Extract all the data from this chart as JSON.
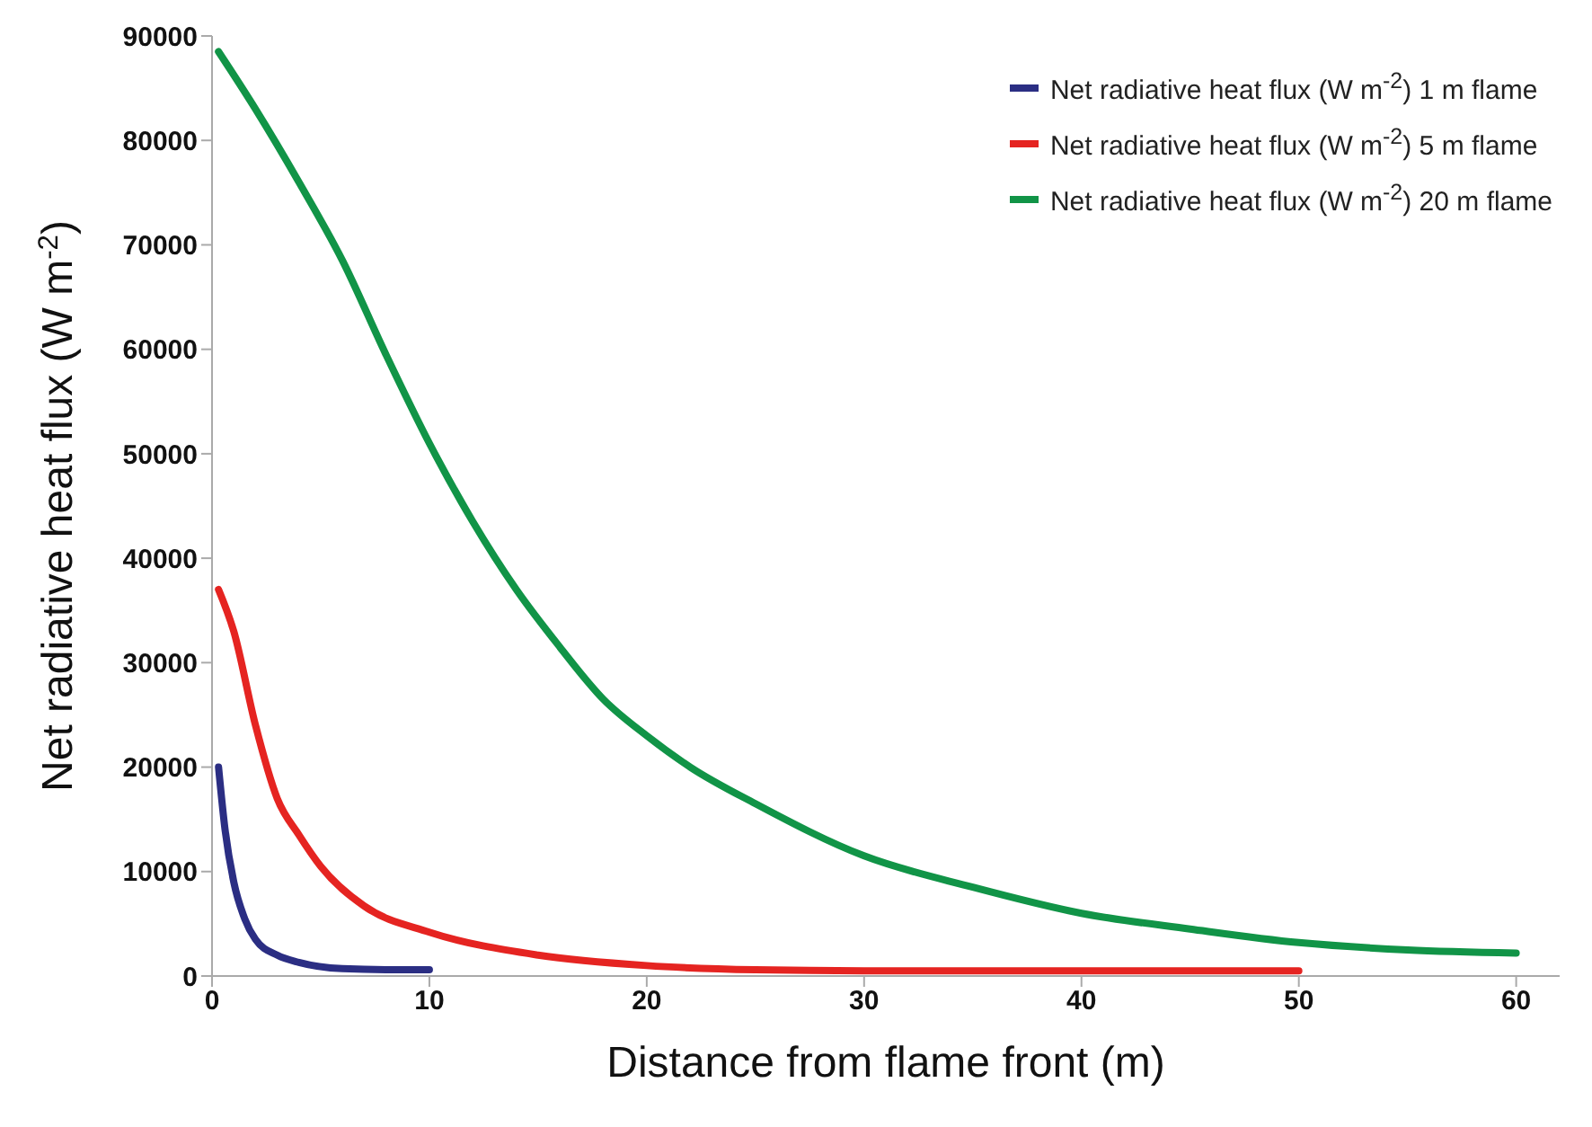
{
  "chart_data": {
    "type": "line",
    "xlabel": "Distance from flame front (m)",
    "ylabel": "Net radiative heat flux (W m$^{-2}$)",
    "xlim": [
      0,
      62
    ],
    "xticks": [
      0,
      10,
      20,
      30,
      40,
      50,
      60
    ],
    "ylim": [
      0,
      90000
    ],
    "yticks": [
      0,
      10000,
      20000,
      30000,
      40000,
      50000,
      60000,
      70000,
      80000,
      90000
    ],
    "grid": false,
    "legend": "top right",
    "marker": "none",
    "line_style": "solid",
    "series": [
      {
        "name": "Net radiative heat flux (W m$^{-2}$) 1 m flame",
        "color": "#2b2e83",
        "x": [
          0.3,
          0.6,
          1,
          1.5,
          2,
          3,
          4,
          6,
          8,
          10
        ],
        "values": [
          20000,
          14000,
          9000,
          5500,
          3500,
          2000,
          1300,
          700,
          600,
          600
        ]
      },
      {
        "name": "Net radiative heat flux (W m$^{-2}$) 5 m flame",
        "color": "#e52421",
        "x": [
          0.3,
          1,
          2,
          3,
          4,
          5,
          7,
          10,
          15,
          20,
          25,
          30,
          40,
          50
        ],
        "values": [
          37000,
          33000,
          24000,
          17000,
          13500,
          10500,
          6700,
          4200,
          2000,
          1000,
          600,
          500,
          500,
          500
        ]
      },
      {
        "name": "Net radiative heat flux (W m$^{-2}$) 20 m flame",
        "color": "#119447",
        "x": [
          0.3,
          2,
          4,
          6,
          8,
          10,
          12,
          14,
          16,
          18,
          20,
          22,
          25,
          30,
          35,
          40,
          45,
          50,
          55,
          60
        ],
        "values": [
          88500,
          83000,
          76000,
          68500,
          59500,
          51000,
          43500,
          37000,
          31500,
          26500,
          23000,
          20000,
          16500,
          11500,
          8500,
          6000,
          4500,
          3200,
          2500,
          2200
        ]
      }
    ]
  }
}
